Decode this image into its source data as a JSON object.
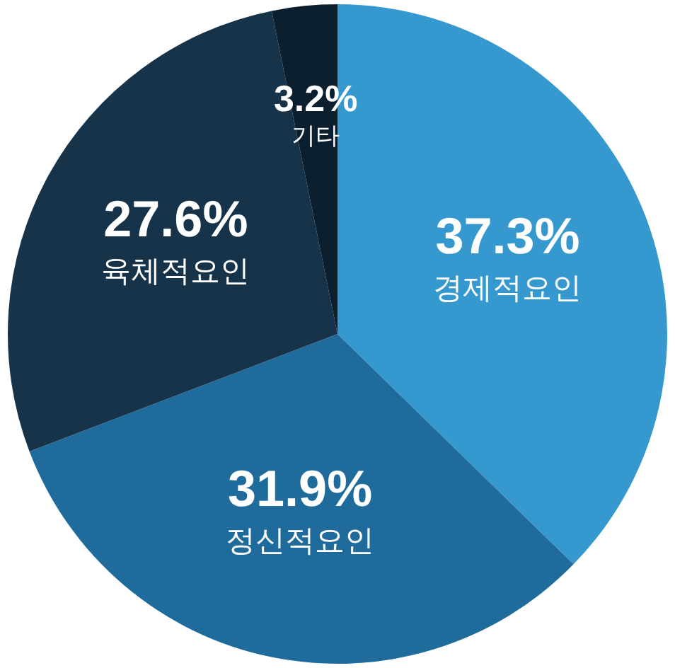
{
  "chart_data": {
    "type": "pie",
    "categories": [
      "경제적요인",
      "정신적요인",
      "육체적요인",
      "기타"
    ],
    "values": [
      37.3,
      31.9,
      27.6,
      3.2
    ],
    "value_labels": [
      "37.3%",
      "31.9%",
      "27.6%",
      "3.2%"
    ],
    "colors": [
      "#3598cf",
      "#1f6c9c",
      "#173349",
      "#0c1f2f"
    ],
    "legend": false
  }
}
